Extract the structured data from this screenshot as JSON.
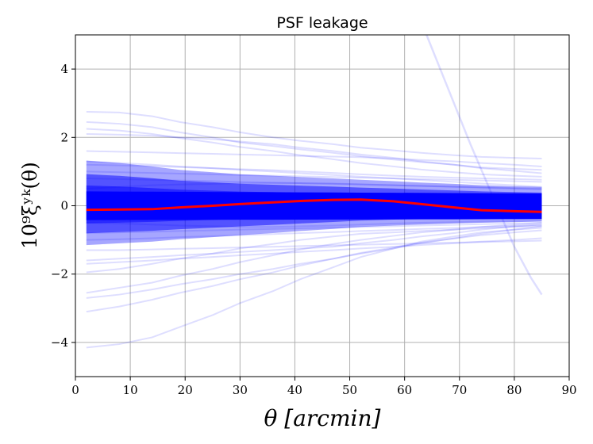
{
  "chart_data": {
    "type": "line",
    "title": "PSF leakage",
    "xlabel": "θ [arcmin]",
    "ylabel": "10⁹ξʸᵏ(θ)",
    "xlim": [
      0,
      90
    ],
    "ylim": [
      -5,
      5
    ],
    "xticks": [
      0,
      10,
      20,
      30,
      40,
      50,
      60,
      70,
      80,
      90
    ],
    "yticks": [
      -4,
      -2,
      0,
      2,
      4
    ],
    "grid": true,
    "x": [
      2,
      8,
      14,
      19,
      25,
      30,
      36,
      41,
      47,
      52,
      58,
      63,
      69,
      74,
      80,
      85
    ],
    "background_series_color": "#0000ff",
    "mean_series_color": "#ff0000",
    "series": [
      {
        "values": [
          -0.12,
          -0.11,
          -0.1,
          -0.05,
          0.0,
          0.05,
          0.1,
          0.14,
          0.17,
          0.18,
          0.13,
          0.05,
          -0.05,
          -0.13,
          -0.16,
          -0.18
        ]
      },
      {
        "values": [
          2.75,
          2.73,
          2.62,
          2.45,
          2.3,
          2.15,
          2.0,
          1.9,
          1.8,
          1.7,
          1.62,
          1.55,
          1.48,
          1.43,
          1.4,
          1.38
        ]
      },
      {
        "values": [
          2.45,
          2.4,
          2.3,
          2.15,
          2.0,
          1.85,
          1.75,
          1.65,
          1.55,
          1.45,
          1.35,
          1.28,
          1.2,
          1.12,
          1.08,
          1.05
        ]
      },
      {
        "values": [
          2.1,
          2.08,
          2.05,
          2.0,
          1.95,
          1.88,
          1.8,
          1.7,
          1.6,
          1.5,
          1.4,
          1.3,
          1.2,
          1.1,
          1.02,
          0.95
        ]
      },
      {
        "values": [
          1.6,
          1.58,
          1.56,
          1.54,
          1.52,
          1.5,
          1.48,
          1.46,
          1.44,
          1.42,
          1.38,
          1.34,
          1.3,
          1.25,
          1.2,
          1.15
        ]
      },
      {
        "values": [
          1.3,
          1.25,
          1.2,
          1.15,
          1.1,
          1.05,
          1.0,
          0.95,
          0.9,
          0.85,
          0.8,
          0.75,
          0.7,
          0.65,
          0.6,
          0.55
        ]
      },
      {
        "values": [
          -1.95,
          -1.85,
          -1.7,
          -1.55,
          -1.4,
          -1.25,
          -1.12,
          -1.0,
          -0.9,
          -0.82,
          -0.78,
          -0.74,
          -0.7,
          -0.66,
          -0.62,
          -0.6
        ]
      },
      {
        "values": [
          -1.3,
          -1.3,
          -1.28,
          -1.26,
          -1.24,
          -1.22,
          -1.2,
          -1.18,
          -1.16,
          -1.14,
          -1.12,
          -1.1,
          -1.08,
          -1.06,
          -1.04,
          -1.02
        ]
      },
      {
        "values": [
          -1.6,
          -1.55,
          -1.5,
          -1.45,
          -1.4,
          -1.35,
          -1.3,
          -1.25,
          -1.2,
          -1.1,
          -1.0,
          -0.9,
          -0.8,
          -0.7,
          -0.6,
          -0.55
        ]
      },
      {
        "values": [
          -2.55,
          -2.4,
          -2.25,
          -2.05,
          -1.85,
          -1.65,
          -1.45,
          -1.28,
          -1.12,
          -1.0,
          -0.88,
          -0.78,
          -0.7,
          -0.62,
          -0.55,
          -0.5
        ]
      },
      {
        "values": [
          -2.7,
          -2.6,
          -2.45,
          -2.3,
          -2.15,
          -2.0,
          -1.85,
          -1.7,
          -1.55,
          -1.4,
          -1.25,
          -1.1,
          -0.95,
          -0.82,
          -0.7,
          -0.6
        ]
      },
      {
        "values": [
          -3.1,
          -2.95,
          -2.75,
          -2.55,
          -2.35,
          -2.15,
          -1.95,
          -1.75,
          -1.55,
          -1.38,
          -1.22,
          -1.08,
          -0.96,
          -0.86,
          -0.78,
          -0.72
        ]
      },
      {
        "values": [
          -4.15,
          -4.05,
          -3.85,
          -3.55,
          -3.2,
          -2.85,
          -2.5,
          -2.15,
          -1.8,
          -1.5,
          -1.25,
          -1.05,
          -0.9,
          -0.78,
          -0.7,
          -0.65
        ]
      },
      {
        "values": [
          0.8,
          0.78,
          0.76,
          0.74,
          0.72,
          0.7,
          0.68,
          0.66,
          0.64,
          0.62,
          0.6,
          0.58,
          0.56,
          0.54,
          0.52,
          0.5
        ]
      },
      {
        "values": [
          -0.8,
          -0.78,
          -0.76,
          -0.74,
          -0.72,
          -0.7,
          -0.68,
          -0.66,
          -0.64,
          -0.62,
          -0.6,
          -0.58,
          -0.56,
          -0.54,
          -0.52,
          -0.5
        ]
      },
      {
        "values": [
          1.0,
          0.98,
          0.96,
          0.94,
          0.92,
          0.9,
          0.88,
          0.86,
          0.84,
          0.82,
          0.8,
          0.78,
          0.76,
          0.74,
          0.72,
          0.7
        ]
      },
      {
        "values": [
          -1.0,
          -0.98,
          -0.95,
          -0.92,
          -0.89,
          -0.86,
          -0.83,
          -0.8,
          -0.77,
          -0.74,
          -0.71,
          -0.68,
          -0.65,
          -0.62,
          -0.59,
          -0.56
        ]
      },
      {
        "values": [
          0.5,
          0.55,
          0.6,
          0.62,
          0.64,
          0.66,
          0.66,
          0.66,
          0.65,
          0.63,
          0.6,
          0.58,
          0.55,
          0.53,
          0.5,
          0.48
        ]
      },
      {
        "values": [
          -0.5,
          -0.52,
          -0.55,
          -0.58,
          -0.6,
          -0.62,
          -0.62,
          -0.6,
          -0.58,
          -0.55,
          -0.52,
          -0.5,
          -0.48,
          -0.46,
          -0.45,
          -0.44
        ]
      },
      {
        "values": [
          1.2,
          1.18,
          1.16,
          1.13,
          1.1,
          1.07,
          1.04,
          1.0,
          0.96,
          0.92,
          0.88,
          0.85,
          0.82,
          0.8,
          0.78,
          0.76
        ]
      },
      {
        "values": [
          -1.7,
          -1.65,
          -1.6,
          -1.55,
          -1.5,
          -1.45,
          -1.4,
          -1.35,
          -1.3,
          -1.25,
          -1.2,
          -1.15,
          -1.1,
          -1.05,
          -1.0,
          -0.95
        ]
      },
      {
        "values": [
          2.25,
          2.2,
          2.1,
          1.98,
          1.85,
          1.72,
          1.6,
          1.48,
          1.36,
          1.25,
          1.15,
          1.06,
          0.98,
          0.92,
          0.88,
          0.85
        ]
      }
    ],
    "outlier_series": {
      "x": [
        64,
        68,
        72,
        76,
        80,
        83,
        85
      ],
      "values": [
        5.0,
        3.4,
        1.8,
        0.3,
        -1.2,
        -2.1,
        -2.6
      ]
    }
  }
}
